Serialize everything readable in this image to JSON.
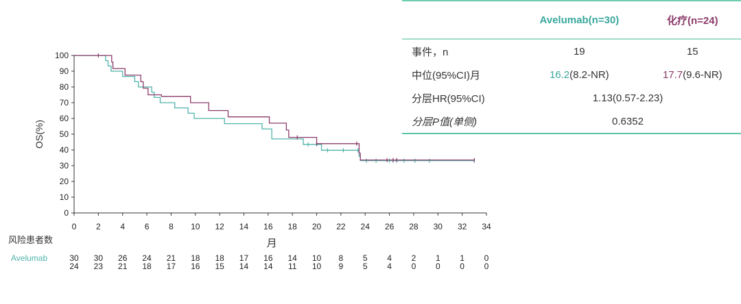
{
  "colors": {
    "avelumab": "#4fb3a9",
    "chemo": "#8b3a6a",
    "axis": "#333333"
  },
  "stats_table": {
    "headers": [
      "",
      "Avelumab(n=30)",
      "化疗(n=24)"
    ],
    "rows": [
      {
        "label": "事件，n",
        "avelumab": "19",
        "chemo": "15"
      },
      {
        "label": "中位(95%CI)月",
        "avelumab_median": "16.2",
        "avelumab_ci": "(8.2-NR)",
        "chemo_median": "17.7",
        "chemo_ci": "(9.6-NR)"
      },
      {
        "label": "分层HR(95%CI)",
        "value": "1.13(0.57-2.23)"
      },
      {
        "label": "分层P值(单侧)",
        "value": "0.6352"
      }
    ]
  },
  "chart_data": {
    "type": "line",
    "subtype": "kaplan-meier",
    "xlabel": "月",
    "ylabel": "OS(%)",
    "xlim": [
      0,
      34
    ],
    "ylim": [
      0,
      100
    ],
    "xticks": [
      0,
      2,
      4,
      6,
      8,
      10,
      12,
      14,
      16,
      18,
      20,
      22,
      24,
      26,
      28,
      30,
      32,
      34
    ],
    "yticks": [
      0,
      10,
      20,
      30,
      40,
      50,
      60,
      70,
      80,
      90,
      100
    ],
    "series": [
      {
        "name": "Avelumab",
        "color": "#4fb3a9",
        "steps": [
          [
            0,
            100
          ],
          [
            2.6,
            96.7
          ],
          [
            2.8,
            93.3
          ],
          [
            3.05,
            90
          ],
          [
            4.0,
            86.7
          ],
          [
            5.0,
            83.3
          ],
          [
            5.3,
            80
          ],
          [
            6.4,
            76.7
          ],
          [
            6.6,
            73.3
          ],
          [
            7.1,
            70
          ],
          [
            8.3,
            66.7
          ],
          [
            9.4,
            63.3
          ],
          [
            9.9,
            60
          ],
          [
            12.4,
            56.7
          ],
          [
            15.5,
            53.3
          ],
          [
            16.3,
            47
          ],
          [
            18.9,
            43.5
          ],
          [
            20.4,
            39.8
          ],
          [
            23.5,
            36
          ],
          [
            23.6,
            33.2
          ],
          [
            33.0,
            33.2
          ]
        ],
        "censored": [
          19.3,
          20.0,
          20.9,
          22.2,
          23.4,
          24.1,
          24.9,
          26.0,
          26.3,
          26.6,
          27.2,
          28.1,
          29.3,
          33.0
        ]
      },
      {
        "name": "化疗",
        "color": "#8b3a6a",
        "steps": [
          [
            0,
            100
          ],
          [
            3.1,
            95.8
          ],
          [
            3.2,
            91.7
          ],
          [
            4.2,
            87.5
          ],
          [
            5.5,
            83.3
          ],
          [
            5.7,
            79.2
          ],
          [
            6.1,
            75
          ],
          [
            7.2,
            74
          ],
          [
            9.6,
            70
          ],
          [
            11.1,
            65
          ],
          [
            12.7,
            61
          ],
          [
            16.1,
            57
          ],
          [
            17.5,
            52.6
          ],
          [
            17.7,
            48
          ],
          [
            20.0,
            44
          ],
          [
            23.5,
            38
          ],
          [
            23.6,
            33.6
          ],
          [
            33.0,
            33.6
          ]
        ],
        "censored": [
          2.0,
          18.4,
          20.0,
          23.3,
          25.8,
          26.3,
          26.6,
          33.0
        ]
      }
    ],
    "risk_table": {
      "title": "风险患者数",
      "times": [
        0,
        2,
        4,
        6,
        8,
        10,
        12,
        14,
        16,
        18,
        20,
        22,
        24,
        26,
        28,
        30,
        32,
        34
      ],
      "rows": [
        {
          "label": "Avelumab",
          "values": [
            30,
            30,
            26,
            24,
            21,
            18,
            18,
            17,
            16,
            14,
            10,
            8,
            5,
            4,
            2,
            1,
            1,
            0
          ]
        },
        {
          "label": "",
          "values": [
            24,
            23,
            21,
            18,
            17,
            16,
            15,
            14,
            14,
            11,
            10,
            9,
            5,
            4,
            0,
            0,
            0,
            0
          ]
        }
      ]
    }
  }
}
